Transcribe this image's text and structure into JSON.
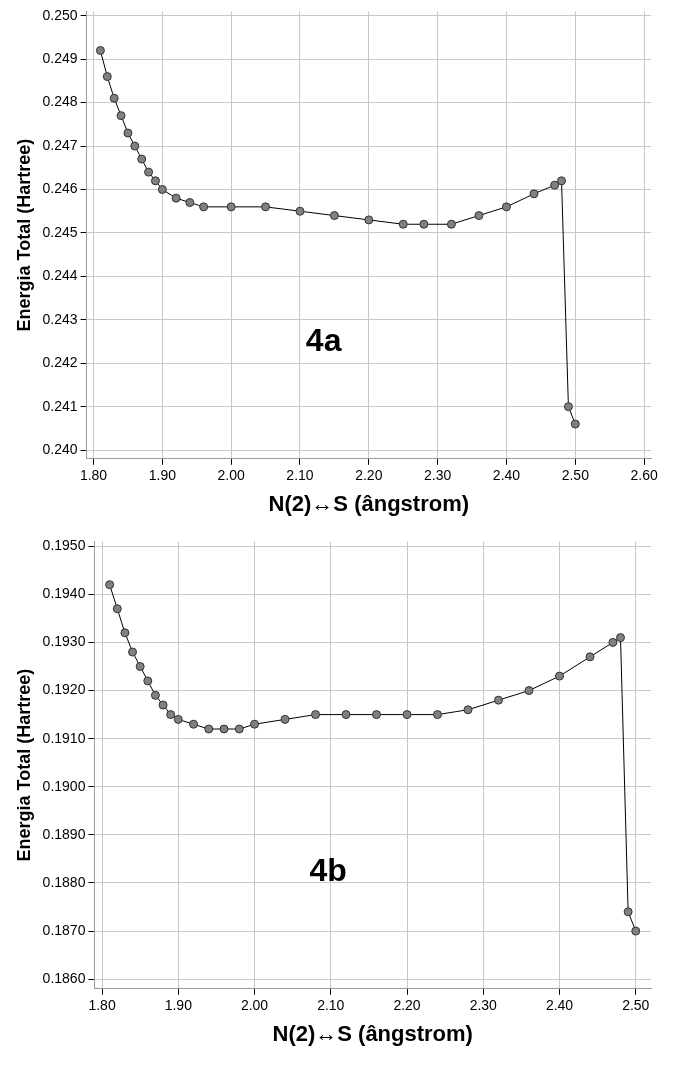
{
  "chart_data": [
    {
      "type": "line",
      "xlabel": "N(2)↔S (ângstrom)",
      "ylabel": "Energia Total (Hartree)",
      "annotations": [
        "4a"
      ],
      "marker": "circle",
      "grid": true,
      "xlim": [
        1.79,
        2.61
      ],
      "ylim": [
        0.2398,
        0.2501
      ],
      "xticks": [
        {
          "value": 1.8,
          "label": "1.80"
        },
        {
          "value": 1.9,
          "label": "1.90"
        },
        {
          "value": 2.0,
          "label": "2.00"
        },
        {
          "value": 2.1,
          "label": "2.10"
        },
        {
          "value": 2.2,
          "label": "2.20"
        },
        {
          "value": 2.3,
          "label": "2.30"
        },
        {
          "value": 2.4,
          "label": "2.40"
        },
        {
          "value": 2.5,
          "label": "2.50"
        },
        {
          "value": 2.6,
          "label": "2.60"
        }
      ],
      "yticks": [
        {
          "value": 0.24,
          "label": "0.240"
        },
        {
          "value": 0.241,
          "label": "0.241"
        },
        {
          "value": 0.242,
          "label": "0.242"
        },
        {
          "value": 0.243,
          "label": "0.243"
        },
        {
          "value": 0.244,
          "label": "0.244"
        },
        {
          "value": 0.245,
          "label": "0.245"
        },
        {
          "value": 0.246,
          "label": "0.246"
        },
        {
          "value": 0.247,
          "label": "0.247"
        },
        {
          "value": 0.248,
          "label": "0.248"
        },
        {
          "value": 0.249,
          "label": "0.249"
        },
        {
          "value": 0.25,
          "label": "0.250"
        }
      ],
      "series": [
        {
          "color": "#808080",
          "x": [
            1.81,
            1.82,
            1.83,
            1.84,
            1.85,
            1.86,
            1.87,
            1.88,
            1.89,
            1.9,
            1.92,
            1.94,
            1.96,
            2.0,
            2.05,
            2.1,
            2.15,
            2.2,
            2.25,
            2.28,
            2.32,
            2.36,
            2.4,
            2.44,
            2.47,
            2.48,
            2.49,
            2.5
          ],
          "values": [
            0.2492,
            0.2486,
            0.2481,
            0.2477,
            0.2473,
            0.247,
            0.2467,
            0.2464,
            0.2462,
            0.246,
            0.2458,
            0.2457,
            0.2456,
            0.2456,
            0.2456,
            0.2455,
            0.2454,
            0.2453,
            0.2452,
            0.2452,
            0.2452,
            0.2454,
            0.2456,
            0.2459,
            0.2461,
            0.2462,
            0.241,
            0.2406
          ]
        }
      ]
    },
    {
      "type": "line",
      "xlabel": "N(2)↔S (ângstrom)",
      "ylabel": "Energia Total (Hartree)",
      "annotations": [
        "4b"
      ],
      "marker": "circle",
      "grid": true,
      "xlim": [
        1.79,
        2.52
      ],
      "ylim": [
        0.1858,
        0.1951
      ],
      "xticks": [
        {
          "value": 1.8,
          "label": "1.80"
        },
        {
          "value": 1.9,
          "label": "1.90"
        },
        {
          "value": 2.0,
          "label": "2.00"
        },
        {
          "value": 2.1,
          "label": "2.10"
        },
        {
          "value": 2.2,
          "label": "2.20"
        },
        {
          "value": 2.3,
          "label": "2.30"
        },
        {
          "value": 2.4,
          "label": "2.40"
        },
        {
          "value": 2.5,
          "label": "2.50"
        }
      ],
      "yticks": [
        {
          "value": 0.186,
          "label": "0.1860"
        },
        {
          "value": 0.187,
          "label": "0.1870"
        },
        {
          "value": 0.188,
          "label": "0.1880"
        },
        {
          "value": 0.189,
          "label": "0.1890"
        },
        {
          "value": 0.19,
          "label": "0.1900"
        },
        {
          "value": 0.191,
          "label": "0.1910"
        },
        {
          "value": 0.192,
          "label": "0.1920"
        },
        {
          "value": 0.193,
          "label": "0.1930"
        },
        {
          "value": 0.194,
          "label": "0.1940"
        },
        {
          "value": 0.195,
          "label": "0.1950"
        }
      ],
      "series": [
        {
          "color": "#808080",
          "x": [
            1.81,
            1.82,
            1.83,
            1.84,
            1.85,
            1.86,
            1.87,
            1.88,
            1.89,
            1.9,
            1.92,
            1.94,
            1.96,
            1.98,
            2.0,
            2.04,
            2.08,
            2.12,
            2.16,
            2.2,
            2.24,
            2.28,
            2.32,
            2.36,
            2.4,
            2.44,
            2.47,
            2.48,
            2.49,
            2.5
          ],
          "values": [
            0.1942,
            0.1937,
            0.1932,
            0.1928,
            0.1925,
            0.1922,
            0.1919,
            0.1917,
            0.1915,
            0.1914,
            0.1913,
            0.1912,
            0.1912,
            0.1912,
            0.1913,
            0.1914,
            0.1915,
            0.1915,
            0.1915,
            0.1915,
            0.1915,
            0.1916,
            0.1918,
            0.192,
            0.1923,
            0.1927,
            0.193,
            0.1931,
            0.1874,
            0.187
          ]
        }
      ]
    }
  ]
}
